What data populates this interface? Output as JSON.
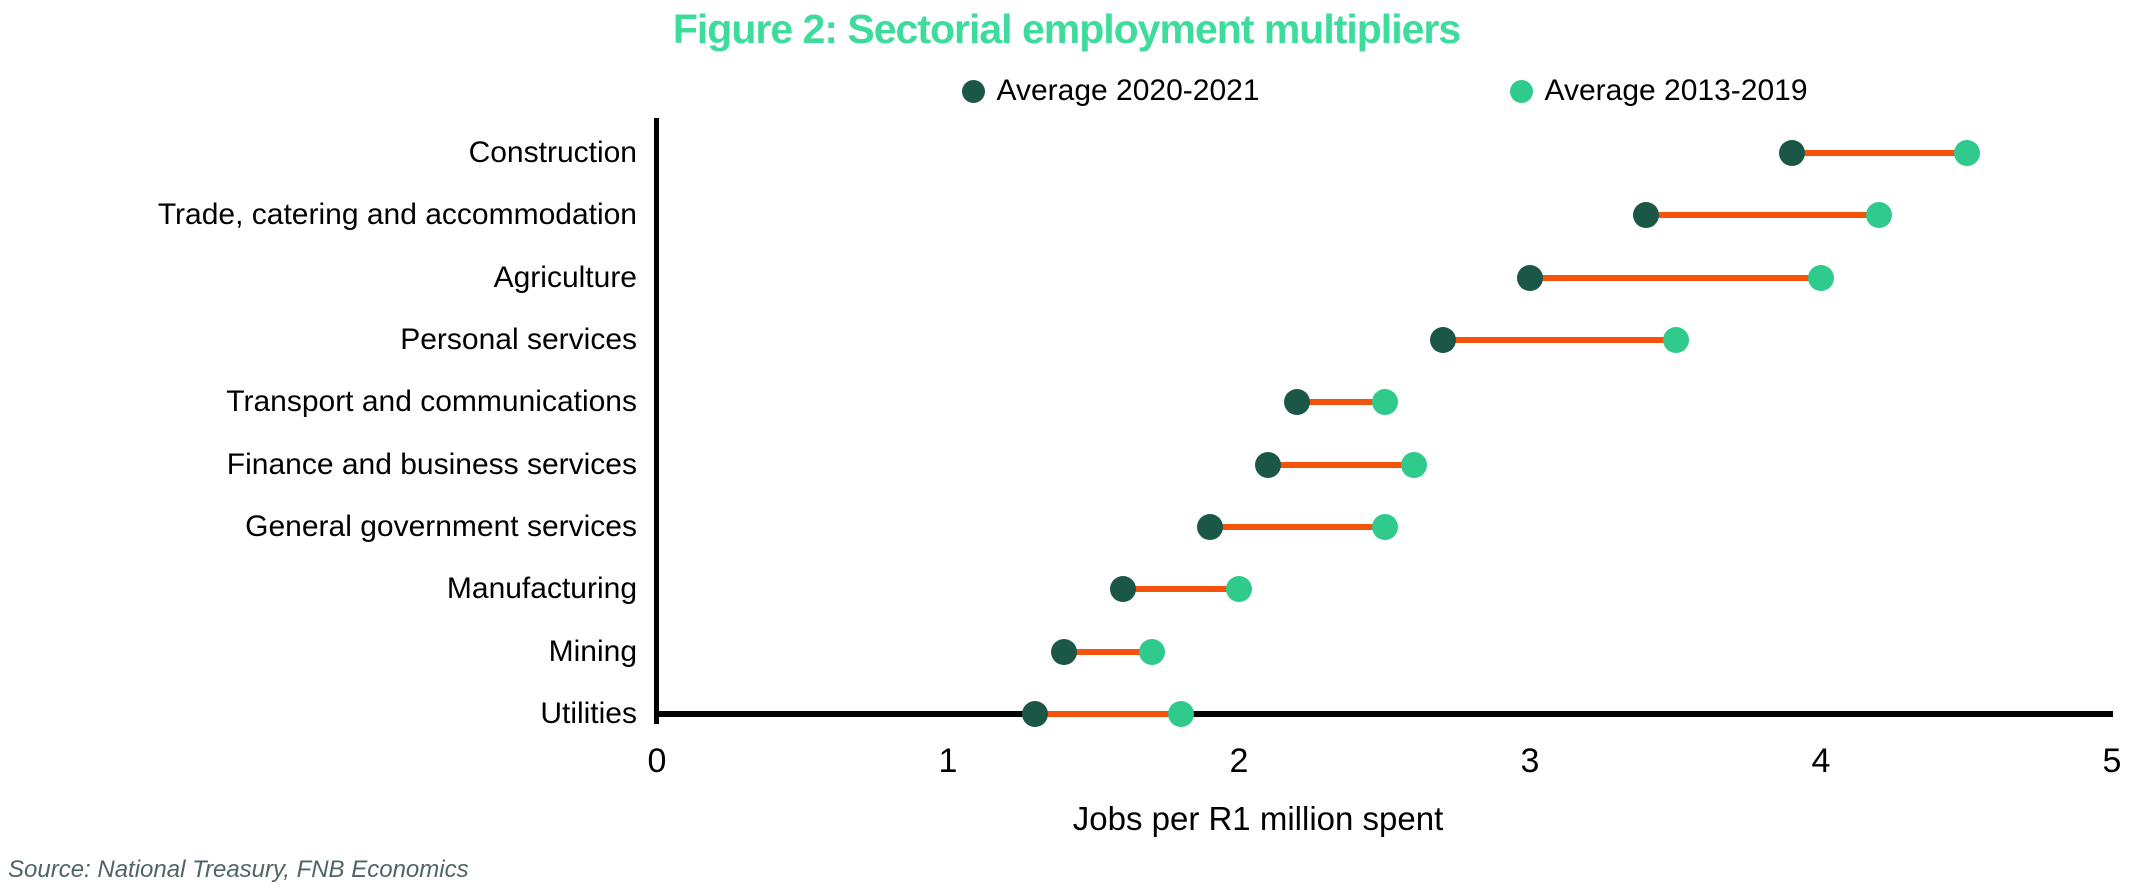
{
  "chart_data": {
    "type": "scatter",
    "subtype": "dumbbell",
    "title": "Figure 2: Sectorial employment multipliers",
    "title_color": "#3EDC9C",
    "xlabel": "Jobs per R1 million spent",
    "xlim": [
      0,
      5
    ],
    "xticks": [
      "0",
      "1",
      "2",
      "3",
      "4",
      "5"
    ],
    "grid": "off",
    "legend_position": "top-center",
    "categories": [
      "Construction",
      "Trade, catering and accommodation",
      "Agriculture",
      "Personal services",
      "Transport and communications",
      "Finance and business services",
      "General government services",
      "Manufacturing",
      "Mining",
      "Utilities"
    ],
    "series": [
      {
        "name": "Average 2020-2021",
        "color": "#1A5747",
        "values": [
          3.9,
          3.4,
          3.0,
          2.7,
          2.2,
          2.1,
          1.9,
          1.6,
          1.4,
          1.3
        ]
      },
      {
        "name": "Average 2013-2019",
        "color": "#2FCA8C",
        "values": [
          4.5,
          4.2,
          4.0,
          3.5,
          2.5,
          2.6,
          2.5,
          2.0,
          1.7,
          1.8
        ]
      }
    ],
    "connector_color": "#F4530C",
    "source": "Source: National Treasury, FNB Economics",
    "source_color": "#4F6468"
  }
}
